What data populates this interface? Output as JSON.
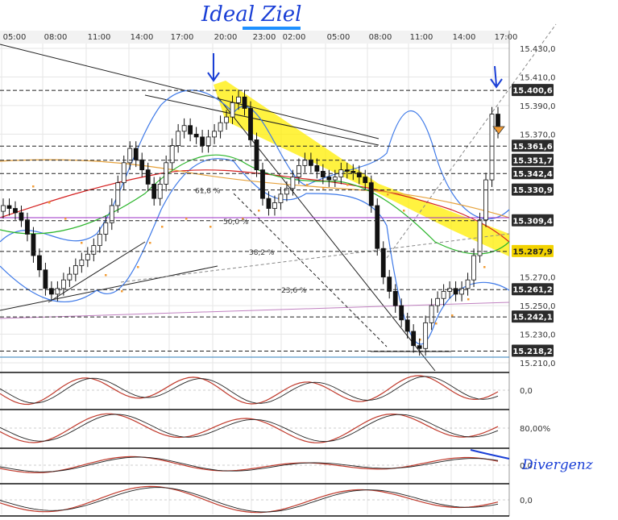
{
  "annotations": {
    "top_note": "Ideal Ziel",
    "right_note": "Divergenz"
  },
  "chart_data": {
    "type": "candlestick",
    "x_ticks": [
      "05:00",
      "08:00",
      "11:00",
      "14:00",
      "17:00",
      "20:00",
      "23:00",
      "02:00",
      "05:00",
      "08:00",
      "11:00",
      "14:00",
      "17:00"
    ],
    "y_ticks": [
      "15.430,0",
      "15.410,0",
      "15.390,0",
      "15.370,0",
      "15.270,0",
      "15.250,0",
      "15.230,0",
      "15.210,0"
    ],
    "ylim": [
      15210,
      15430
    ],
    "price_levels": [
      {
        "label": "15.400,6",
        "value": 15400.6,
        "style": "dark"
      },
      {
        "label": "15.361,6",
        "value": 15361.6,
        "style": "dark"
      },
      {
        "label": "15.351,7",
        "value": 15351.7,
        "style": "dark"
      },
      {
        "label": "15.342,4",
        "value": 15342.4,
        "style": "dark"
      },
      {
        "label": "15.330,9",
        "value": 15330.9,
        "style": "dark"
      },
      {
        "label": "15.309,4",
        "value": 15309.4,
        "style": "dark"
      },
      {
        "label": "15.287,9",
        "value": 15287.9,
        "style": "yellow"
      },
      {
        "label": "15.261,2",
        "value": 15261.2,
        "style": "dark"
      },
      {
        "label": "15.242,1",
        "value": 15242.1,
        "style": "dark"
      },
      {
        "label": "15.218,2",
        "value": 15218.2,
        "style": "dark"
      }
    ],
    "fib_labels": [
      {
        "label": "61,8 %",
        "value": 15330.9
      },
      {
        "label": "50,0 %",
        "value": 15309.4
      },
      {
        "label": "38,2 %",
        "value": 15287.9
      },
      {
        "label": "23,6 %",
        "value": 15261.2
      }
    ],
    "candles_close": [
      15320,
      15318,
      15315,
      15310,
      15300,
      15285,
      15275,
      15262,
      15258,
      15262,
      15268,
      15272,
      15278,
      15282,
      15286,
      15292,
      15300,
      15308,
      15320,
      15336,
      15350,
      15360,
      15352,
      15345,
      15335,
      15325,
      15335,
      15350,
      15362,
      15372,
      15376,
      15370,
      15368,
      15362,
      15368,
      15372,
      15378,
      15382,
      15392,
      15396,
      15388,
      15366,
      15345,
      15325,
      15318,
      15322,
      15328,
      15332,
      15340,
      15348,
      15352,
      15348,
      15344,
      15340,
      15338,
      15340,
      15345,
      15344,
      15343,
      15340,
      15336,
      15320,
      15290,
      15270,
      15260,
      15250,
      15240,
      15232,
      15222,
      15220,
      15238,
      15250,
      15255,
      15260,
      15262,
      15258,
      15262,
      15268,
      15285,
      15310,
      15338,
      15384,
      15372
    ],
    "sub_panels": [
      {
        "name": "macd",
        "label": "0,0"
      },
      {
        "name": "stochastic",
        "label": "80,00%"
      },
      {
        "name": "oscillator",
        "label": "0,0"
      },
      {
        "name": "momentum",
        "label": "0,0"
      }
    ]
  }
}
